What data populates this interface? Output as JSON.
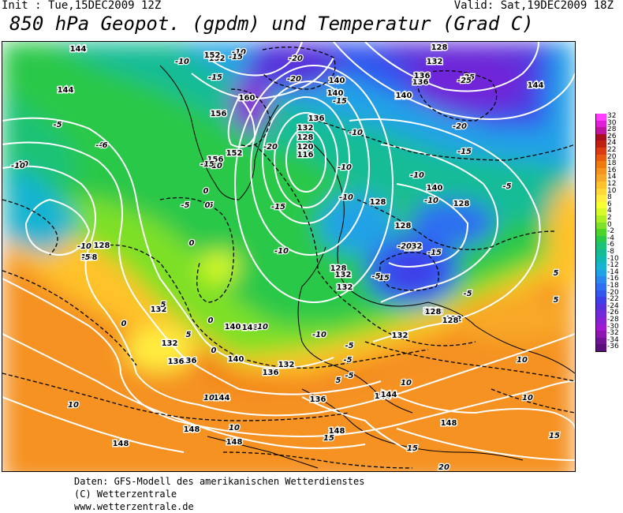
{
  "header": {
    "init": "Init : Tue,15DEC2009 12Z",
    "valid": "Valid: Sat,19DEC2009 18Z",
    "title": "850 hPa Geopot. (gpdm) und Temperatur (Grad C)"
  },
  "legend": {
    "labels": [
      "32",
      "30",
      "28",
      "26",
      "24",
      "22",
      "20",
      "18",
      "16",
      "14",
      "12",
      "10",
      "8",
      "6",
      "4",
      "2",
      "0",
      "-2",
      "-4",
      "-6",
      "-8",
      "-10",
      "-12",
      "-14",
      "-16",
      "-18",
      "-20",
      "-22",
      "-24",
      "-26",
      "-28",
      "-30",
      "-32",
      "-34",
      "-36"
    ],
    "colors": [
      "#ff3dff",
      "#e01fd6",
      "#c0159f",
      "#a8101f",
      "#c02010",
      "#dc3a12",
      "#e85a10",
      "#f07a12",
      "#f59220",
      "#f8a828",
      "#ffc22c",
      "#ffd83a",
      "#ffee40",
      "#f6ff30",
      "#d8fa28",
      "#aef026",
      "#7ee028",
      "#4cd42c",
      "#2cc84a",
      "#1ec276",
      "#14bc96",
      "#12b8b4",
      "#18b4d2",
      "#22a2e6",
      "#2a88ee",
      "#2f6ef2",
      "#3356ef",
      "#3f3ee8",
      "#5630dc",
      "#7028d8",
      "#8a20d6",
      "#a018cf",
      "#8e16b0",
      "#701294",
      "#5a0e7c"
    ]
  },
  "map": {
    "geopot_labels": [
      "144",
      "144",
      "152",
      "160",
      "156",
      "152",
      "156",
      "136",
      "132",
      "128",
      "120",
      "116",
      "140",
      "140",
      "136",
      "140",
      "140",
      "136",
      "132",
      "128",
      "128",
      "128",
      "128",
      "128",
      "132",
      "132",
      "128",
      "132",
      "132",
      "132",
      "136",
      "136",
      "140",
      "140",
      "140",
      "144",
      "144",
      "144",
      "148",
      "148",
      "148",
      "148",
      "136",
      "128",
      "128",
      "128",
      "144",
      "152",
      "148",
      "132",
      "128",
      "128",
      "132",
      "128",
      "140",
      "136",
      "132"
    ],
    "temp_labels": [
      "-5",
      "-6",
      "-10",
      "-10",
      "-10",
      "-15",
      "-20",
      "-15",
      "-25",
      "-25",
      "-20",
      "-15",
      "-20",
      "-20",
      "-10",
      "-10",
      "-15",
      "-10",
      "-10",
      "-15",
      "-15",
      "-10",
      "-10",
      "-5",
      "-20",
      "-15",
      "-10",
      "-15",
      "-10",
      "-10",
      "-5",
      "-5",
      "-5",
      "-10",
      "-5",
      "-5",
      "-5",
      "-5",
      "-6",
      "0",
      "0",
      "0",
      "0",
      "0",
      "0",
      "5",
      "5",
      "5",
      "5",
      "5",
      "10",
      "10",
      "10",
      "10",
      "10",
      "10",
      "15",
      "15",
      "15",
      "20",
      "-10",
      "-5",
      "-5"
    ]
  },
  "footer": {
    "line1": "Daten: GFS-Modell des amerikanischen Wetterdienstes",
    "line2": "(C) Wetterzentrale",
    "line3": "www.wetterzentrale.de"
  }
}
